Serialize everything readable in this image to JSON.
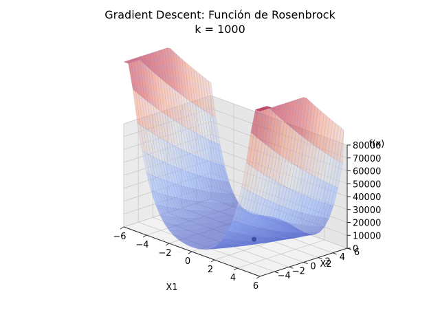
{
  "chart_data": {
    "type": "surface3d",
    "title": "Gradient Descent: Función de Rosenbrock",
    "subtitle": "k = 1000",
    "xlabel": "X1",
    "ylabel": "X2",
    "zlabel": "f(x)",
    "xlim": [
      -6,
      6
    ],
    "ylim": [
      -6,
      6
    ],
    "zlim": [
      0,
      80000
    ],
    "x_ticks": [
      -6,
      -4,
      -2,
      0,
      2,
      4,
      6
    ],
    "y_ticks": [
      -4,
      -2,
      0,
      2,
      4,
      6
    ],
    "z_ticks": [
      0,
      10000,
      20000,
      30000,
      40000,
      50000,
      60000,
      70000,
      80000
    ],
    "x_tick_labels": [
      "−6",
      "−4",
      "−2",
      "0",
      "2",
      "4",
      "6"
    ],
    "y_tick_labels": [
      "−4",
      "−2",
      "0",
      "2",
      "4",
      "6"
    ],
    "z_tick_labels": [
      "0",
      "10000",
      "20000",
      "30000",
      "40000",
      "50000",
      "60000",
      "70000",
      "80000"
    ],
    "function": "rosenbrock",
    "colormap": "coolwarm",
    "grid": true,
    "current_point": {
      "x1": 1,
      "x2": 1,
      "fx": 0
    }
  }
}
